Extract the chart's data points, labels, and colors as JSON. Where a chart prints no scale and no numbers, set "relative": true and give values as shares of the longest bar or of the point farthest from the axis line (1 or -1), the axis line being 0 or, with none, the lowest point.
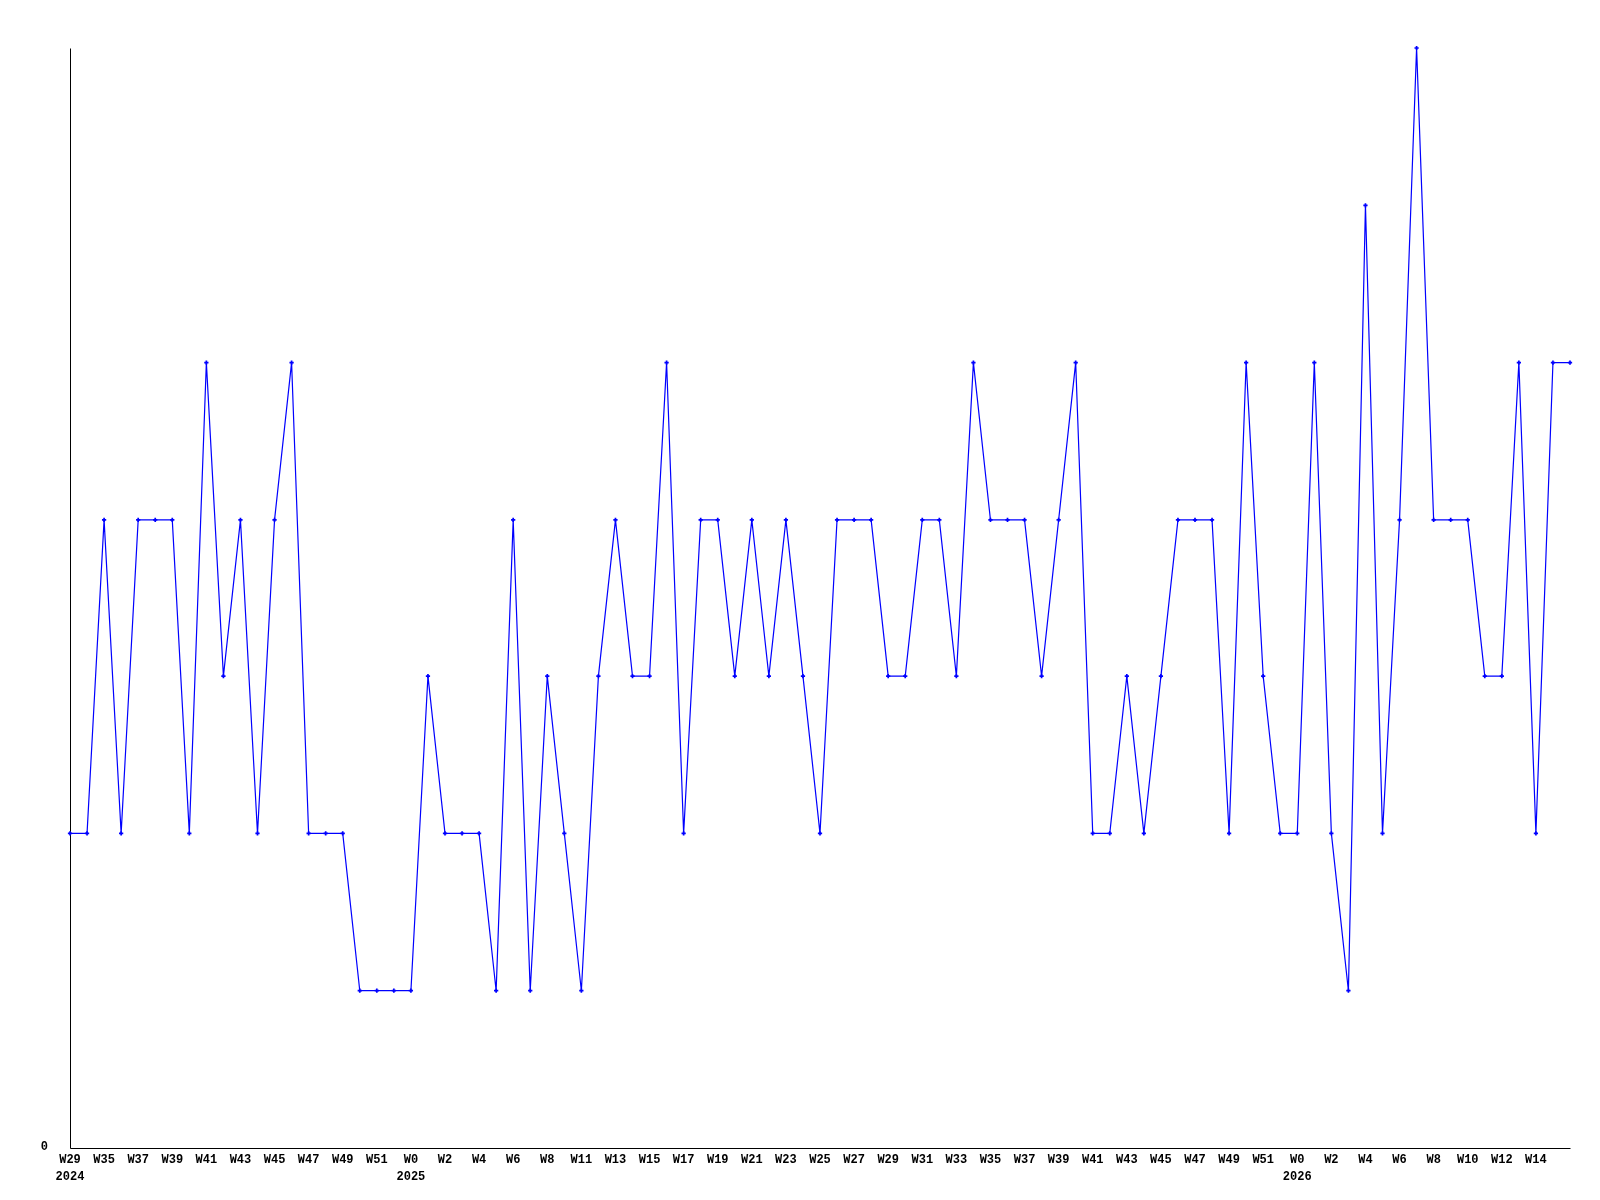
{
  "chart_data": {
    "type": "line",
    "relative": true,
    "color": "#0000ff",
    "marker": "cross",
    "grid": false,
    "categories": [
      "W29\n2024",
      null,
      "W35",
      null,
      "W37",
      null,
      "W39",
      null,
      "W41",
      null,
      "W43",
      null,
      "W45",
      null,
      "W47",
      null,
      "W49",
      null,
      "W51",
      null,
      "W0\n2025",
      null,
      "W2",
      null,
      "W4",
      null,
      "W6",
      null,
      "W8",
      null,
      "W11",
      null,
      "W13",
      null,
      "W15",
      null,
      "W17",
      null,
      "W19",
      null,
      "W21",
      null,
      "W23",
      null,
      "W25",
      null,
      "W27",
      null,
      "W29",
      null,
      "W31",
      null,
      "W33",
      null,
      "W35",
      null,
      "W37",
      null,
      "W39",
      null,
      "W41",
      null,
      "W43",
      null,
      "W45",
      null,
      "W47",
      null,
      "W49",
      null,
      "W51",
      null,
      "W0\n2026",
      null,
      "W2",
      null,
      "W4",
      null,
      "W6",
      null,
      "W8",
      null,
      "W10",
      null,
      "W12",
      null,
      "W14",
      null,
      null
    ],
    "values": [
      0.286,
      0.286,
      0.571,
      0.286,
      0.571,
      0.571,
      0.571,
      0.286,
      0.714,
      0.429,
      0.571,
      0.286,
      0.571,
      0.714,
      0.286,
      0.286,
      0.286,
      0.143,
      0.143,
      0.143,
      0.143,
      0.429,
      0.286,
      0.286,
      0.286,
      0.143,
      0.571,
      0.143,
      0.429,
      0.286,
      0.143,
      0.429,
      0.571,
      0.429,
      0.429,
      0.714,
      0.286,
      0.571,
      0.571,
      0.429,
      0.571,
      0.429,
      0.571,
      0.429,
      0.286,
      0.571,
      0.571,
      0.571,
      0.429,
      0.429,
      0.571,
      0.571,
      0.429,
      0.714,
      0.571,
      0.571,
      0.571,
      0.429,
      0.571,
      0.714,
      0.286,
      0.286,
      0.429,
      0.286,
      0.429,
      0.571,
      0.571,
      0.571,
      0.286,
      0.714,
      0.429,
      0.286,
      0.286,
      0.714,
      0.286,
      0.143,
      0.857,
      0.286,
      0.571,
      1,
      0.571,
      0.571,
      0.571,
      0.429,
      0.429,
      0.714,
      0.286,
      0.714,
      0.714
    ],
    "annotations": [
      "0"
    ]
  }
}
